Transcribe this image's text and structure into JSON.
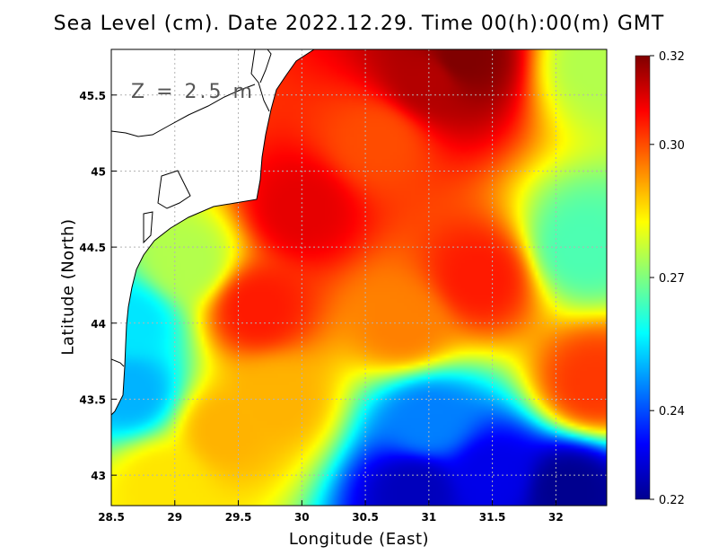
{
  "title": "Sea Level (cm). Date 2022.12.29. Time 00(h):00(m) GMT",
  "depth_label": "Z = 2.5 m",
  "colors": {
    "land": "#ffffff",
    "coast": "#000000",
    "grid": "#b4b4b4"
  },
  "chart_data": {
    "type": "heatmap",
    "variable": "Sea Level (cm)",
    "title": "Sea Level (cm). Date 2022.12.29. Time 00(h):00(m) GMT",
    "xlabel": "Longitude (East)",
    "ylabel": "Latitude (North)",
    "xlim": [
      28.5,
      32.4
    ],
    "ylim": [
      42.8,
      45.8
    ],
    "xticks": [
      "28.5",
      "29",
      "29.5",
      "30",
      "30.5",
      "31",
      "31.5",
      "32"
    ],
    "yticks": [
      "43",
      "43.5",
      "44",
      "44.5",
      "45",
      "45.5"
    ],
    "grid": true,
    "colorbar": {
      "ticks": [
        "0.32",
        "0.30",
        "0.27",
        "0.24",
        "0.22"
      ],
      "range": [
        0.22,
        0.32
      ],
      "placement": "right"
    },
    "field_samples": [
      {
        "lon": 31.25,
        "lat": 45.75,
        "value": 0.32
      },
      {
        "lon": 31.0,
        "lat": 45.6,
        "value": 0.315
      },
      {
        "lon": 30.0,
        "lat": 44.75,
        "value": 0.31
      },
      {
        "lon": 29.65,
        "lat": 44.1,
        "value": 0.305
      },
      {
        "lon": 31.4,
        "lat": 44.3,
        "value": 0.305
      },
      {
        "lon": 30.6,
        "lat": 45.2,
        "value": 0.3
      },
      {
        "lon": 32.3,
        "lat": 43.6,
        "value": 0.302
      },
      {
        "lon": 30.8,
        "lat": 44.0,
        "value": 0.295
      },
      {
        "lon": 29.4,
        "lat": 43.3,
        "value": 0.29
      },
      {
        "lon": 28.9,
        "lat": 42.95,
        "value": 0.285
      },
      {
        "lon": 29.8,
        "lat": 43.5,
        "value": 0.29
      },
      {
        "lon": 32.2,
        "lat": 44.5,
        "value": 0.265
      },
      {
        "lon": 32.35,
        "lat": 45.7,
        "value": 0.275
      },
      {
        "lon": 29.1,
        "lat": 44.4,
        "value": 0.275
      },
      {
        "lon": 28.65,
        "lat": 44.0,
        "value": 0.255
      },
      {
        "lon": 28.65,
        "lat": 43.55,
        "value": 0.25
      },
      {
        "lon": 31.0,
        "lat": 43.35,
        "value": 0.245
      },
      {
        "lon": 31.5,
        "lat": 43.0,
        "value": 0.23
      },
      {
        "lon": 32.1,
        "lat": 42.9,
        "value": 0.22
      },
      {
        "lon": 30.9,
        "lat": 42.9,
        "value": 0.225
      }
    ]
  }
}
